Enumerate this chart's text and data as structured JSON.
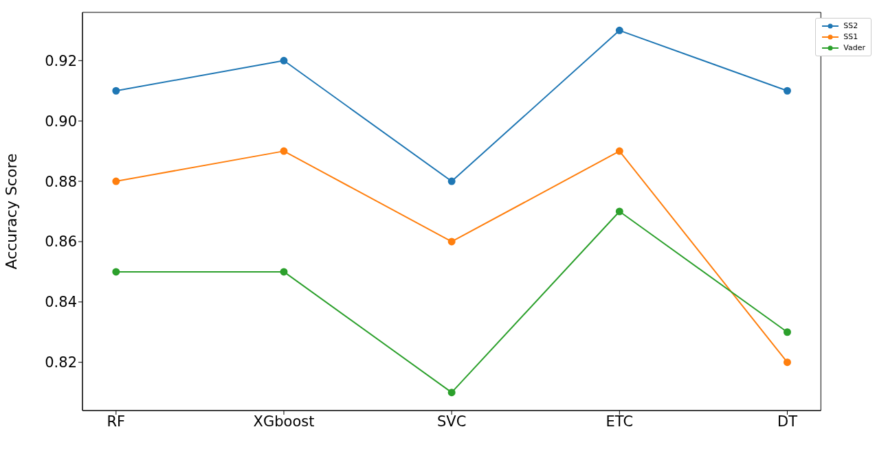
{
  "chart_data": {
    "type": "line",
    "ylabel": "Accuracy Score",
    "categories": [
      "RF",
      "XGboost",
      "SVC",
      "ETC",
      "DT"
    ],
    "series": [
      {
        "name": "SS2",
        "color": "#1f77b4",
        "values": [
          0.91,
          0.92,
          0.88,
          0.93,
          0.91
        ]
      },
      {
        "name": "SS1",
        "color": "#ff7f0e",
        "values": [
          0.88,
          0.89,
          0.86,
          0.89,
          0.82
        ]
      },
      {
        "name": "Vader",
        "color": "#2ca02c",
        "values": [
          0.85,
          0.85,
          0.81,
          0.87,
          0.83
        ]
      }
    ],
    "ylim": [
      0.804,
      0.936
    ],
    "yticks": [
      0.82,
      0.84,
      0.86,
      0.88,
      {
        "value": 0.9,
        "label": "0.90"
      },
      0.92
    ],
    "grid": false,
    "legend": "top right",
    "marker": "circle",
    "line_style": "solid"
  }
}
